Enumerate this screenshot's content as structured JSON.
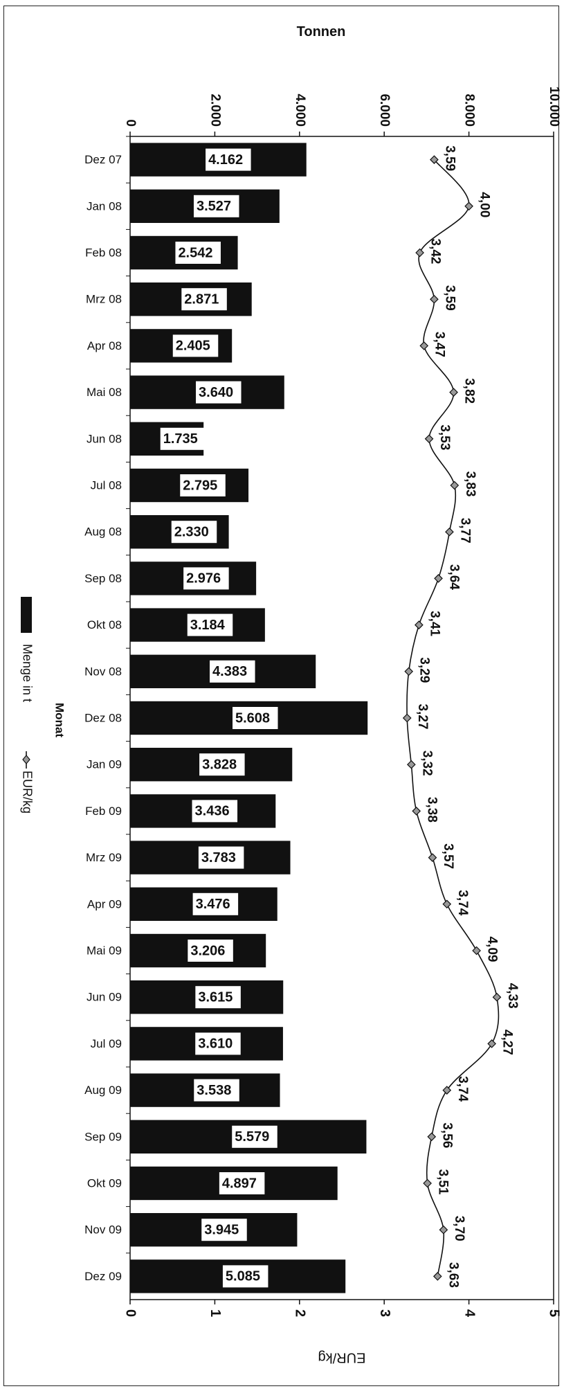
{
  "chart_data": {
    "type": "bar",
    "orientation": "horizontal",
    "title": "",
    "top_axis_label": "Tonnen",
    "bottom_axis_label": "EUR/kg",
    "category_axis_label": "Monat",
    "top_ticks": [
      "0",
      "2.000",
      "4.000",
      "6.000",
      "8.000",
      "10.000"
    ],
    "top_range": [
      0,
      10000
    ],
    "bottom_ticks": [
      "0",
      "1",
      "2",
      "3",
      "4",
      "5"
    ],
    "bottom_range": [
      0,
      5
    ],
    "grid": false,
    "legend_position": "left",
    "categories": [
      "Dez 07",
      "Jan 08",
      "Feb 08",
      "Mrz 08",
      "Apr 08",
      "Mai 08",
      "Jun 08",
      "Jul 08",
      "Aug 08",
      "Sep 08",
      "Okt 08",
      "Nov 08",
      "Dez 08",
      "Jan 09",
      "Feb 09",
      "Mrz 09",
      "Apr 09",
      "Mai 09",
      "Jun 09",
      "Jul 09",
      "Aug 09",
      "Sep 09",
      "Okt 09",
      "Nov 09",
      "Dez 09"
    ],
    "series": [
      {
        "name": "Menge in t",
        "type": "bar",
        "axis": "top",
        "color": "#111111",
        "values": [
          4162,
          3527,
          2542,
          2871,
          2405,
          3640,
          1735,
          2795,
          2330,
          2976,
          3184,
          4383,
          5608,
          3828,
          3436,
          3783,
          3476,
          3206,
          3615,
          3610,
          3538,
          5579,
          4897,
          3945,
          5085
        ],
        "labels": [
          "4.162",
          "3.527",
          "2.542",
          "2.871",
          "2.405",
          "3.640",
          "1.735",
          "2.795",
          "2.330",
          "2.976",
          "3.184",
          "4.383",
          "5.608",
          "3.828",
          "3.436",
          "3.783",
          "3.476",
          "3.206",
          "3.615",
          "3.610",
          "3.538",
          "5.579",
          "4.897",
          "3.945",
          "5.085"
        ]
      },
      {
        "name": "EUR/kg",
        "type": "line",
        "axis": "bottom",
        "color": "#111111",
        "marker": "diamond",
        "values": [
          3.59,
          4.0,
          3.42,
          3.59,
          3.47,
          3.82,
          3.53,
          3.83,
          3.77,
          3.64,
          3.41,
          3.29,
          3.27,
          3.32,
          3.38,
          3.57,
          3.74,
          4.09,
          4.33,
          4.27,
          3.74,
          3.56,
          3.51,
          3.7,
          3.63
        ],
        "labels": [
          "3,59",
          "4,00",
          "3,42",
          "3,59",
          "3,47",
          "3,82",
          "3,53",
          "3,83",
          "3,77",
          "3,64",
          "3,41",
          "3,29",
          "3,27",
          "3,32",
          "3,38",
          "3,57",
          "3,74",
          "4,09",
          "4,33",
          "4,27",
          "3,74",
          "3,56",
          "3,51",
          "3,70",
          "3,63"
        ]
      }
    ]
  }
}
